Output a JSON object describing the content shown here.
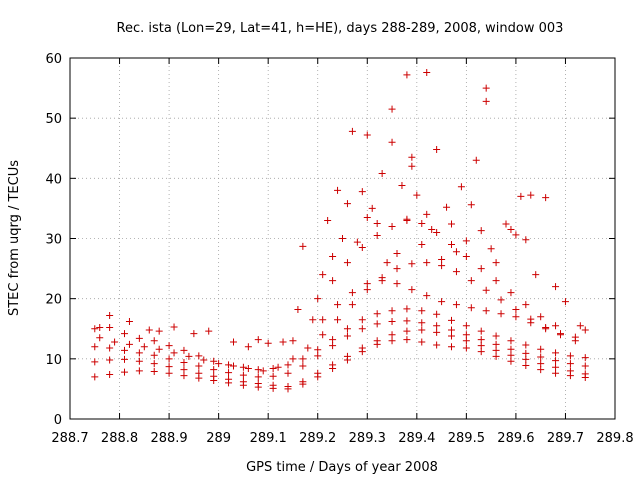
{
  "chart_data": {
    "type": "scatter",
    "title": "Rec. ista (Lon=29, Lat=41, h=HE), days 288-289, 2008, window 003",
    "xlabel": "GPS time / Days of year 2008",
    "ylabel": "STEC from uqrg / TECUs",
    "xlim": [
      288.7,
      289.8
    ],
    "ylim": [
      0,
      60
    ],
    "xticks": [
      "288.7",
      "288.8",
      "288.9",
      "289",
      "289.1",
      "289.2",
      "289.3",
      "289.4",
      "289.5",
      "289.6",
      "289.7",
      "289.8"
    ],
    "yticks": [
      "0",
      "10",
      "20",
      "30",
      "40",
      "50",
      "60"
    ],
    "grid": true,
    "marker": "plus",
    "color": "#cc0000",
    "series": [
      {
        "tracks": [
          [
            [
              288.75,
              15.0
            ],
            [
              288.78,
              15.2
            ],
            [
              288.81,
              14.2
            ],
            [
              288.84,
              13.4
            ],
            [
              288.87,
              13.0
            ],
            [
              288.9,
              12.2
            ],
            [
              288.93,
              11.4
            ],
            [
              288.96,
              10.5
            ],
            [
              288.99,
              9.6
            ],
            [
              289.02,
              9.0
            ],
            [
              289.05,
              8.6
            ],
            [
              289.08,
              8.2
            ],
            [
              289.11,
              8.4
            ],
            [
              289.14,
              9.0
            ],
            [
              289.17,
              10.0
            ],
            [
              289.2,
              11.5
            ],
            [
              289.23,
              13.2
            ],
            [
              289.26,
              15.0
            ],
            [
              289.29,
              16.5
            ],
            [
              289.32,
              17.5
            ],
            [
              289.35,
              18.0
            ],
            [
              289.38,
              18.3
            ],
            [
              289.41,
              18.0
            ],
            [
              289.44,
              17.4
            ],
            [
              289.47,
              16.4
            ],
            [
              289.5,
              15.5
            ],
            [
              289.53,
              14.6
            ],
            [
              289.56,
              13.8
            ],
            [
              289.59,
              13.0
            ],
            [
              289.62,
              12.3
            ],
            [
              289.65,
              11.6
            ],
            [
              289.68,
              11.0
            ],
            [
              289.71,
              10.5
            ],
            [
              289.74,
              10.2
            ]
          ],
          [
            [
              288.75,
              12.0
            ],
            [
              288.78,
              11.8
            ],
            [
              288.81,
              11.4
            ],
            [
              288.84,
              11.0
            ],
            [
              288.87,
              10.6
            ],
            [
              288.9,
              10.0
            ],
            [
              288.93,
              9.4
            ],
            [
              288.96,
              8.8
            ],
            [
              288.99,
              8.2
            ],
            [
              289.02,
              7.7
            ],
            [
              289.05,
              7.3
            ],
            [
              289.08,
              7.0
            ],
            [
              289.11,
              7.1
            ],
            [
              289.14,
              7.6
            ],
            [
              289.17,
              8.8
            ],
            [
              289.2,
              10.5
            ],
            [
              289.23,
              12.2
            ],
            [
              289.26,
              13.8
            ],
            [
              289.29,
              15.0
            ],
            [
              289.32,
              15.8
            ],
            [
              289.35,
              16.2
            ],
            [
              289.38,
              16.3
            ],
            [
              289.41,
              16.0
            ],
            [
              289.44,
              15.5
            ],
            [
              289.47,
              14.8
            ],
            [
              289.5,
              14.0
            ],
            [
              289.53,
              13.2
            ],
            [
              289.56,
              12.4
            ],
            [
              289.59,
              11.6
            ],
            [
              289.62,
              10.9
            ],
            [
              289.65,
              10.3
            ],
            [
              289.68,
              9.7
            ],
            [
              289.71,
              9.2
            ],
            [
              289.74,
              8.8
            ]
          ],
          [
            [
              288.75,
              9.5
            ],
            [
              288.78,
              9.8
            ],
            [
              288.81,
              9.9
            ],
            [
              288.84,
              9.6
            ],
            [
              288.87,
              9.2
            ],
            [
              288.9,
              8.7
            ],
            [
              288.93,
              8.2
            ],
            [
              288.96,
              7.6
            ],
            [
              288.99,
              7.1
            ],
            [
              289.02,
              6.6
            ],
            [
              289.05,
              6.2
            ],
            [
              289.08,
              5.9
            ],
            [
              289.11,
              5.6
            ],
            [
              289.14,
              5.4
            ],
            [
              289.17,
              6.2
            ],
            [
              289.2,
              7.6
            ],
            [
              289.23,
              9.0
            ],
            [
              289.26,
              10.4
            ],
            [
              289.29,
              11.8
            ],
            [
              289.32,
              13.0
            ],
            [
              289.35,
              14.0
            ],
            [
              289.38,
              14.6
            ],
            [
              289.41,
              14.8
            ],
            [
              289.44,
              14.4
            ],
            [
              289.47,
              13.8
            ],
            [
              289.5,
              13.0
            ],
            [
              289.53,
              12.2
            ],
            [
              289.56,
              11.4
            ],
            [
              289.59,
              10.6
            ],
            [
              289.62,
              9.9
            ],
            [
              289.65,
              9.2
            ],
            [
              289.68,
              8.6
            ],
            [
              289.71,
              8.0
            ],
            [
              289.74,
              7.5
            ]
          ],
          [
            [
              288.75,
              7.0
            ],
            [
              288.78,
              7.4
            ],
            [
              288.81,
              7.8
            ],
            [
              288.84,
              8.0
            ],
            [
              288.87,
              7.9
            ],
            [
              288.9,
              7.6
            ],
            [
              288.93,
              7.2
            ],
            [
              288.96,
              6.8
            ],
            [
              288.99,
              6.4
            ],
            [
              289.02,
              6.0
            ],
            [
              289.05,
              5.6
            ],
            [
              289.08,
              5.3
            ],
            [
              289.11,
              5.1
            ],
            [
              289.14,
              5.0
            ],
            [
              289.17,
              5.8
            ],
            [
              289.2,
              7.0
            ],
            [
              289.23,
              8.4
            ],
            [
              289.26,
              9.8
            ],
            [
              289.29,
              11.2
            ],
            [
              289.32,
              12.4
            ],
            [
              289.35,
              13.0
            ],
            [
              289.38,
              13.2
            ],
            [
              289.41,
              12.8
            ],
            [
              289.44,
              12.3
            ],
            [
              289.47,
              12.0
            ],
            [
              289.5,
              11.8
            ],
            [
              289.53,
              11.2
            ],
            [
              289.56,
              10.4
            ],
            [
              289.59,
              9.6
            ],
            [
              289.62,
              8.9
            ],
            [
              289.65,
              8.2
            ],
            [
              289.68,
              7.6
            ],
            [
              289.71,
              7.2
            ],
            [
              289.74,
              6.9
            ]
          ],
          [
            [
              288.76,
              13.5
            ],
            [
              288.79,
              12.8
            ],
            [
              288.82,
              12.4
            ],
            [
              288.85,
              12.0
            ],
            [
              288.88,
              11.6
            ],
            [
              288.91,
              11.0
            ],
            [
              288.94,
              10.4
            ],
            [
              288.97,
              9.8
            ],
            [
              289.0,
              9.2
            ],
            [
              289.03,
              8.8
            ],
            [
              289.06,
              8.4
            ],
            [
              289.09,
              8.0
            ],
            [
              289.12,
              8.6
            ],
            [
              289.15,
              10.0
            ],
            [
              289.18,
              11.8
            ],
            [
              289.21,
              14.0
            ],
            [
              289.24,
              16.5
            ],
            [
              289.27,
              19.0
            ],
            [
              289.3,
              21.5
            ],
            [
              289.33,
              23.5
            ],
            [
              289.36,
              25.0
            ],
            [
              289.39,
              25.8
            ],
            [
              289.42,
              26.0
            ],
            [
              289.45,
              25.5
            ],
            [
              289.48,
              24.5
            ],
            [
              289.51,
              23.0
            ],
            [
              289.54,
              21.4
            ],
            [
              289.57,
              19.8
            ],
            [
              289.6,
              18.2
            ],
            [
              289.63,
              16.6
            ],
            [
              289.66,
              15.2
            ],
            [
              289.69,
              14.0
            ],
            [
              289.72,
              13.0
            ]
          ],
          [
            [
              289.2,
              20.0
            ],
            [
              289.23,
              23.0
            ],
            [
              289.26,
              26.0
            ],
            [
              289.29,
              28.5
            ],
            [
              289.32,
              30.5
            ],
            [
              289.35,
              32.0
            ],
            [
              289.38,
              33.0
            ],
            [
              289.41,
              32.5
            ],
            [
              289.44,
              31.0
            ],
            [
              289.47,
              29.0
            ],
            [
              289.5,
              27.0
            ],
            [
              289.53,
              25.0
            ],
            [
              289.56,
              23.0
            ],
            [
              289.59,
              21.0
            ],
            [
              289.62,
              19.0
            ],
            [
              289.65,
              17.0
            ],
            [
              289.68,
              15.5
            ]
          ],
          [
            [
              289.21,
              16.5
            ],
            [
              289.24,
              19.0
            ],
            [
              289.27,
              21.0
            ],
            [
              289.3,
              22.5
            ],
            [
              289.33,
              23.0
            ],
            [
              289.36,
              22.5
            ],
            [
              289.39,
              21.5
            ],
            [
              289.42,
              20.5
            ],
            [
              289.45,
              19.5
            ],
            [
              289.48,
              19.0
            ],
            [
              289.51,
              18.5
            ],
            [
              289.54,
              18.0
            ],
            [
              289.57,
              17.5
            ],
            [
              289.6,
              17.0
            ],
            [
              289.63,
              16.0
            ],
            [
              289.66,
              15.0
            ],
            [
              289.69,
              14.2
            ],
            [
              289.72,
              13.6
            ]
          ]
        ],
        "points": [
          [
            288.76,
            15.2
          ],
          [
            288.78,
            17.2
          ],
          [
            288.82,
            16.2
          ],
          [
            288.86,
            14.8
          ],
          [
            288.88,
            14.6
          ],
          [
            288.91,
            15.3
          ],
          [
            288.95,
            14.2
          ],
          [
            288.98,
            14.6
          ],
          [
            289.03,
            12.8
          ],
          [
            289.06,
            12.0
          ],
          [
            289.08,
            13.2
          ],
          [
            289.1,
            12.6
          ],
          [
            289.13,
            12.8
          ],
          [
            289.15,
            13.0
          ],
          [
            289.16,
            18.2
          ],
          [
            289.17,
            28.7
          ],
          [
            289.19,
            16.5
          ],
          [
            289.21,
            24.0
          ],
          [
            289.22,
            33.0
          ],
          [
            289.23,
            27.0
          ],
          [
            289.24,
            38.0
          ],
          [
            289.25,
            30.0
          ],
          [
            289.26,
            35.8
          ],
          [
            289.27,
            47.8
          ],
          [
            289.28,
            29.4
          ],
          [
            289.29,
            37.8
          ],
          [
            289.3,
            47.2
          ],
          [
            289.3,
            33.5
          ],
          [
            289.31,
            35.0
          ],
          [
            289.32,
            32.5
          ],
          [
            289.33,
            40.8
          ],
          [
            289.34,
            26.0
          ],
          [
            289.35,
            46.0
          ],
          [
            289.35,
            51.5
          ],
          [
            289.36,
            27.5
          ],
          [
            289.37,
            38.8
          ],
          [
            289.38,
            57.2
          ],
          [
            289.38,
            33.2
          ],
          [
            289.39,
            42.0
          ],
          [
            289.39,
            43.5
          ],
          [
            289.4,
            37.2
          ],
          [
            289.41,
            29.0
          ],
          [
            289.42,
            57.6
          ],
          [
            289.42,
            34.0
          ],
          [
            289.43,
            31.5
          ],
          [
            289.44,
            44.8
          ],
          [
            289.45,
            26.5
          ],
          [
            289.46,
            35.2
          ],
          [
            289.47,
            32.4
          ],
          [
            289.48,
            27.8
          ],
          [
            289.49,
            38.6
          ],
          [
            289.5,
            29.6
          ],
          [
            289.51,
            35.6
          ],
          [
            289.52,
            43.0
          ],
          [
            289.53,
            31.3
          ],
          [
            289.54,
            55.0
          ],
          [
            289.54,
            52.8
          ],
          [
            289.55,
            28.3
          ],
          [
            289.56,
            26.0
          ],
          [
            289.58,
            32.4
          ],
          [
            289.59,
            31.5
          ],
          [
            289.6,
            30.6
          ],
          [
            289.61,
            37.0
          ],
          [
            289.62,
            29.8
          ],
          [
            289.63,
            37.2
          ],
          [
            289.64,
            24.0
          ],
          [
            289.66,
            36.8
          ],
          [
            289.68,
            22.0
          ],
          [
            289.7,
            19.5
          ],
          [
            289.73,
            15.5
          ],
          [
            289.74,
            14.8
          ]
        ]
      }
    ]
  }
}
